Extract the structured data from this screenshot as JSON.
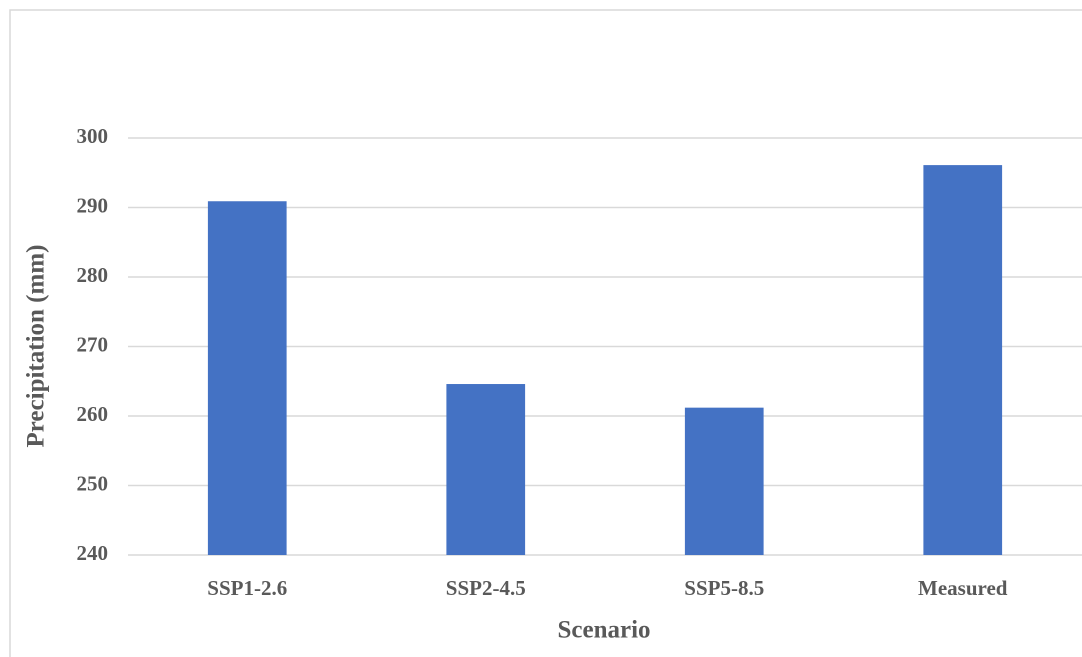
{
  "chart_data": {
    "type": "bar",
    "x_label": "Scenario",
    "y_label": "Precipitation (mm)",
    "categories": [
      "SSP1-2.6",
      "SSP2-4.5",
      "SSP5-8.5",
      "Measured"
    ],
    "values": [
      290.9,
      264.6,
      261.2,
      296.1
    ],
    "color": "#4472c4",
    "ylim": [
      240,
      300
    ],
    "yticks": [
      240,
      250,
      260,
      270,
      280,
      290,
      300
    ],
    "grid": true
  }
}
